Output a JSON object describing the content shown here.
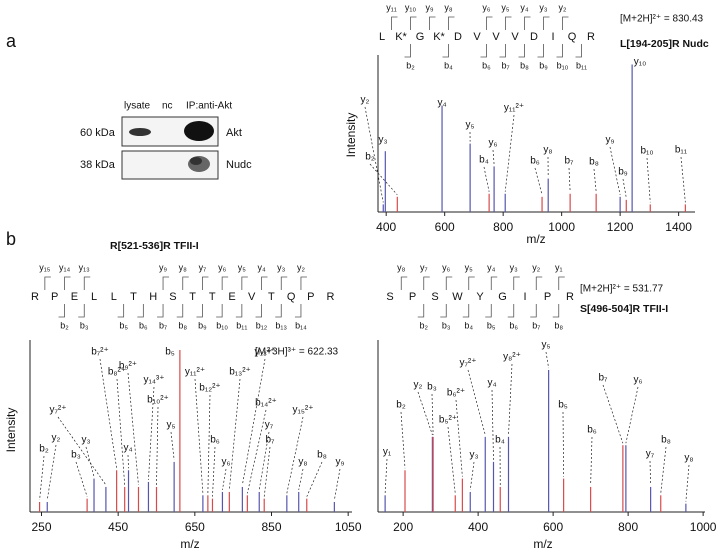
{
  "panel_labels": [
    "a",
    "b"
  ],
  "blot": {
    "lanes": [
      "lysate",
      "nc",
      "IP:anti-Akt"
    ],
    "markers": [
      "60 kDa",
      "38 kDa"
    ],
    "proteins": [
      "Akt",
      "Nudc"
    ]
  },
  "chart_data": [
    {
      "type": "spectrum",
      "xlabel": "m/z",
      "ylabel": "Intensity",
      "precursor": "[M+2H]²⁺ = 830.43",
      "peptide": "L[194-205]R  Nudc",
      "xlim": [
        372,
        1456
      ],
      "ylim": [
        0,
        100
      ],
      "xticks": [
        400,
        600,
        800,
        1000,
        1200,
        1400
      ],
      "colors": {
        "y": "#5656b0",
        "b": "#d84a4a"
      },
      "sequence": {
        "residues": [
          "L",
          "K*",
          "G",
          "K*",
          "D",
          "V",
          "V",
          "V",
          "D",
          "I",
          "Q",
          "R"
        ],
        "y_ions": [
          "y₁₁",
          "y₁₀",
          "y₉",
          "y₈",
          "y₆",
          "y₅",
          "y₄",
          "y₃",
          "y₂"
        ],
        "b_ions": [
          "b₂",
          "b₄",
          "b₆",
          "b₇",
          "b₈",
          "b₉",
          "b₁₀",
          "b₁₁"
        ]
      },
      "peaks": [
        {
          "label": "y₂",
          "mz": 390,
          "intensity": 5
        },
        {
          "label": "b₂",
          "mz": 438,
          "intensity": 10
        },
        {
          "label": "y₃",
          "mz": 397,
          "intensity": 40
        },
        {
          "label": "y₄",
          "mz": 591,
          "intensity": 70
        },
        {
          "label": "y₅",
          "mz": 687,
          "intensity": 45
        },
        {
          "label": "b₄",
          "mz": 752,
          "intensity": 12
        },
        {
          "label": "y₆",
          "mz": 769,
          "intensity": 30
        },
        {
          "label": "y₁₁²⁺",
          "mz": 807,
          "intensity": 12
        },
        {
          "label": "b₆",
          "mz": 933,
          "intensity": 10
        },
        {
          "label": "y₈",
          "mz": 954,
          "intensity": 22
        },
        {
          "label": "b₇",
          "mz": 1029,
          "intensity": 12
        },
        {
          "label": "b₈",
          "mz": 1118,
          "intensity": 12
        },
        {
          "label": "y₉",
          "mz": 1200,
          "intensity": 10
        },
        {
          "label": "b₉",
          "mz": 1221,
          "intensity": 8
        },
        {
          "label": "y₁₀",
          "mz": 1241,
          "intensity": 97
        },
        {
          "label": "b₁₀",
          "mz": 1303,
          "intensity": 5
        },
        {
          "label": "b₁₁",
          "mz": 1423,
          "intensity": 5
        }
      ]
    },
    {
      "type": "spectrum",
      "xlabel": "m/z",
      "ylabel": "Intensity",
      "precursor": "[M+3H]³⁺ = 622.33",
      "peptide": "R[521-536]R  TFII-I",
      "xlim": [
        220,
        1060
      ],
      "ylim": [
        0,
        100
      ],
      "xticks": [
        250,
        450,
        650,
        850,
        1050
      ],
      "colors": {
        "y": "#5656b0",
        "b": "#d84a4a"
      },
      "sequence": {
        "residues": [
          "R",
          "P",
          "E",
          "L",
          "L",
          "T",
          "H",
          "S",
          "T",
          "T",
          "E",
          "V",
          "T",
          "Q",
          "P",
          "R"
        ],
        "y_ions": [
          "y₁₅",
          "y₁₄",
          "y₁₃",
          "y₉",
          "y₈",
          "y₇",
          "y₆",
          "y₅",
          "y₄",
          "y₃",
          "y₂"
        ],
        "b_ions": [
          "b₂",
          "b₃",
          "b₅",
          "b₆",
          "b₇",
          "b₈",
          "b₉",
          "b₁₀",
          "b₁₁",
          "b₁₂",
          "b₁₃",
          "b₁₄"
        ]
      },
      "peaks": [
        {
          "label": "b₂",
          "mz": 245,
          "intensity": 6
        },
        {
          "label": "y₂",
          "mz": 265,
          "intensity": 6
        },
        {
          "label": "b₃",
          "mz": 369,
          "intensity": 8
        },
        {
          "label": "y₃",
          "mz": 387,
          "intensity": 20
        },
        {
          "label": "y₇²⁺",
          "mz": 418,
          "intensity": 15
        },
        {
          "label": "b₇²⁺",
          "mz": 446,
          "intensity": 25
        },
        {
          "label": "b₈²⁺",
          "mz": 467,
          "intensity": 15
        },
        {
          "label": "y₄",
          "mz": 477,
          "intensity": 25
        },
        {
          "label": "b₉²⁺",
          "mz": 503,
          "intensity": 15
        },
        {
          "label": "y₁₄³⁺",
          "mz": 529,
          "intensity": 18
        },
        {
          "label": "b₁₀²⁺",
          "mz": 550,
          "intensity": 15
        },
        {
          "label": "b₅",
          "mz": 611,
          "intensity": 97
        },
        {
          "label": "y₅",
          "mz": 596,
          "intensity": 30
        },
        {
          "label": "y₁₁²⁺",
          "mz": 671,
          "intensity": 10
        },
        {
          "label": "b₁₂²⁺",
          "mz": 684,
          "intensity": 10
        },
        {
          "label": "b₆",
          "mz": 696,
          "intensity": 8
        },
        {
          "label": "y₆",
          "mz": 722,
          "intensity": 12
        },
        {
          "label": "b₁₃²⁺",
          "mz": 740,
          "intensity": 12
        },
        {
          "label": "y₁₃²⁺",
          "mz": 774,
          "intensity": 15
        },
        {
          "label": "b₁₄²⁺",
          "mz": 787,
          "intensity": 10
        },
        {
          "label": "y₇",
          "mz": 818,
          "intensity": 12
        },
        {
          "label": "b₇",
          "mz": 831,
          "intensity": 8
        },
        {
          "label": "y₁₅²⁺",
          "mz": 890,
          "intensity": 10
        },
        {
          "label": "y₈",
          "mz": 921,
          "intensity": 12
        },
        {
          "label": "b₈",
          "mz": 942,
          "intensity": 8
        },
        {
          "label": "y₉",
          "mz": 1014,
          "intensity": 6
        }
      ]
    },
    {
      "type": "spectrum",
      "xlabel": "m/z",
      "precursor": "[M+2H]²⁺ = 531.77",
      "peptide": "S[496-504]R  TFII-I",
      "xlim": [
        133,
        1005
      ],
      "ylim": [
        0,
        100
      ],
      "xticks": [
        200,
        400,
        600,
        800,
        1000
      ],
      "colors": {
        "y": "#5656b0",
        "b": "#d84a4a"
      },
      "sequence": {
        "residues": [
          "S",
          "P",
          "S",
          "W",
          "Y",
          "G",
          "I",
          "P",
          "R"
        ],
        "y_ions": [
          "y₈",
          "y₇",
          "y₆",
          "y₅",
          "y₄",
          "y₃",
          "y₂",
          "y₁"
        ],
        "b_ions": [
          "b₂",
          "b₃",
          "b₄",
          "b₅",
          "b₆",
          "b₇",
          "b₈"
        ]
      },
      "peaks": [
        {
          "label": "y₁",
          "mz": 152,
          "intensity": 10
        },
        {
          "label": "b₂",
          "mz": 205,
          "intensity": 25
        },
        {
          "label": "y₂",
          "mz": 278,
          "intensity": 45
        },
        {
          "label": "b₃",
          "mz": 280,
          "intensity": 45
        },
        {
          "label": "b₅²⁺",
          "mz": 339,
          "intensity": 10
        },
        {
          "label": "b₆²⁺",
          "mz": 358,
          "intensity": 20
        },
        {
          "label": "y₃",
          "mz": 379,
          "intensity": 12
        },
        {
          "label": "y₇²⁺",
          "mz": 419,
          "intensity": 45
        },
        {
          "label": "y₄",
          "mz": 441,
          "intensity": 30
        },
        {
          "label": "b₄",
          "mz": 459,
          "intensity": 15
        },
        {
          "label": "y₈²⁺",
          "mz": 481,
          "intensity": 45
        },
        {
          "label": "y₅",
          "mz": 588,
          "intensity": 85
        },
        {
          "label": "b₅",
          "mz": 628,
          "intensity": 20
        },
        {
          "label": "b₆",
          "mz": 700,
          "intensity": 15
        },
        {
          "label": "b₇",
          "mz": 786,
          "intensity": 40
        },
        {
          "label": "y₆",
          "mz": 794,
          "intensity": 40
        },
        {
          "label": "b₈",
          "mz": 887,
          "intensity": 10
        },
        {
          "label": "y₇",
          "mz": 860,
          "intensity": 15
        },
        {
          "label": "y₈",
          "mz": 954,
          "intensity": 5
        }
      ]
    }
  ]
}
